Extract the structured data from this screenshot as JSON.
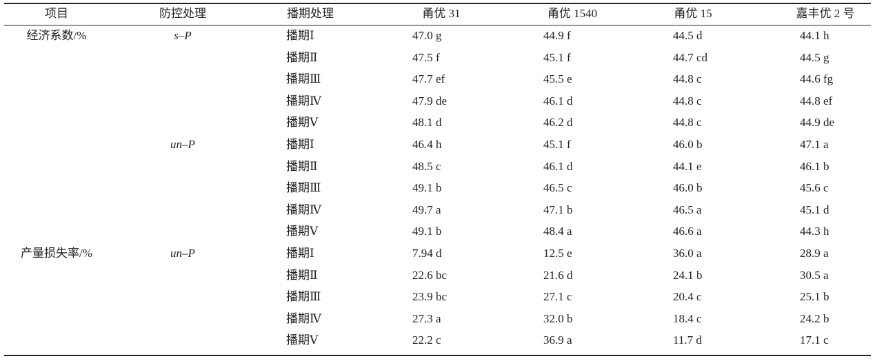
{
  "table": {
    "header": [
      "项目",
      "防控处理",
      "播期处理",
      "甬优 31",
      "甬优 1540",
      "甬优 15",
      "嘉丰优 2 号"
    ],
    "rows": [
      [
        "经济系数/%",
        "s–P",
        "播期Ⅰ",
        "47.0 g",
        "44.9 f",
        "44.5 d",
        "44.1 h"
      ],
      [
        null,
        null,
        "播期Ⅱ",
        "47.5 f",
        "45.1 f",
        "44.7 cd",
        "44.5 g"
      ],
      [
        null,
        null,
        "播期Ⅲ",
        "47.7 ef",
        "45.5 e",
        "44.8 c",
        "44.6 fg"
      ],
      [
        null,
        null,
        "播期Ⅳ",
        "47.9 de",
        "46.1 d",
        "44.8 c",
        "44.8 ef"
      ],
      [
        null,
        null,
        "播期Ⅴ",
        "48.1 d",
        "46.2 d",
        "44.8 c",
        "44.9 de"
      ],
      [
        null,
        "un–P",
        "播期Ⅰ",
        "46.4 h",
        "45.1 f",
        "46.0 b",
        "47.1 a"
      ],
      [
        null,
        null,
        "播期Ⅱ",
        "48.5 c",
        "46.1 d",
        "44.1 e",
        "46.1 b"
      ],
      [
        null,
        null,
        "播期Ⅲ",
        "49.1 b",
        "46.5 c",
        "46.0 b",
        "45.6 c"
      ],
      [
        null,
        null,
        "播期Ⅳ",
        "49.7 a",
        "47.1 b",
        "46.5 a",
        "45.1 d"
      ],
      [
        null,
        null,
        "播期Ⅴ",
        "49.1 b",
        "48.4 a",
        "46.6 a",
        "44.3 h"
      ],
      [
        "产量损失率/%",
        "un–P",
        "播期Ⅰ",
        "7.94 d",
        "12.5 e",
        "36.0 a",
        "28.9 a"
      ],
      [
        null,
        null,
        "播期Ⅱ",
        "22.6 bc",
        "21.6 d",
        "24.1 b",
        "30.5 a"
      ],
      [
        null,
        null,
        "播期Ⅲ",
        "23.9 bc",
        "27.1 c",
        "20.4 c",
        "25.1 b"
      ],
      [
        null,
        null,
        "播期Ⅳ",
        "27.3 a",
        "32.0 b",
        "18.4 c",
        "24.2 b"
      ],
      [
        null,
        null,
        "播期Ⅴ",
        "22.2 c",
        "36.9 a",
        "11.7 d",
        "17.1 c"
      ]
    ]
  }
}
